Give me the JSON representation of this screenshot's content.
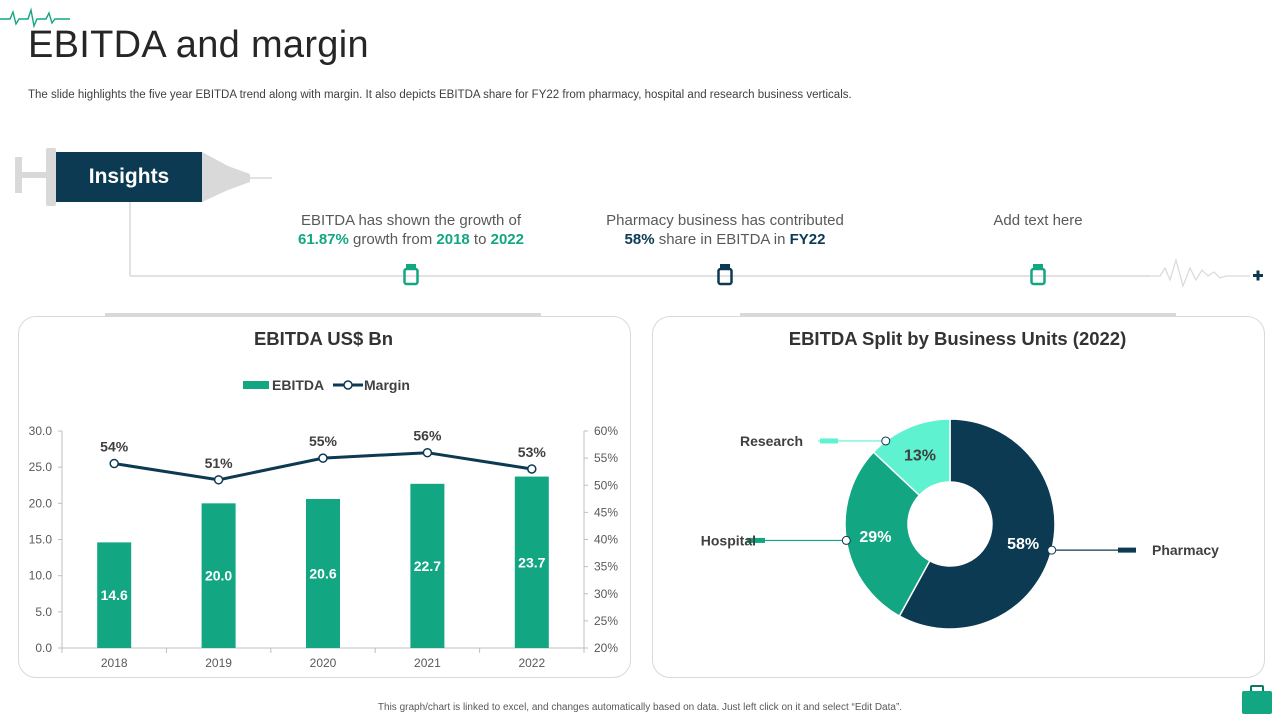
{
  "header": {
    "title": "EBITDA and margin",
    "subtitle": "The slide highlights the five year EBITDA trend along with margin. It also depicts EBITDA share for FY22 from pharmacy, hospital and research business verticals."
  },
  "insights": {
    "label": "Insights",
    "items": [
      {
        "line1": "EBITDA has shown the growth of",
        "pct": "61.87%",
        "mid": " growth from ",
        "from": "2018",
        "to_word": " to ",
        "to": "2022"
      },
      {
        "line1": "Pharmacy business has contributed",
        "pct": "58%",
        "mid": " share in EBITDA in ",
        "year": "FY22"
      },
      {
        "line1": "Add text here"
      }
    ]
  },
  "colors": {
    "teal": "#12a683",
    "navy": "#0c3a52",
    "mint": "#5ef2d0",
    "grey": "#d9d9d9"
  },
  "footer": {
    "note": "This graph/chart is linked to excel, and changes automatically based on data. Just left click on it and select “Edit Data”."
  },
  "chart_data": [
    {
      "type": "bar",
      "title": "EBITDA US$ Bn",
      "legend": [
        "EBITDA",
        "Margin"
      ],
      "legend_position": "top-center",
      "categories": [
        "2018",
        "2019",
        "2020",
        "2021",
        "2022"
      ],
      "series": [
        {
          "name": "EBITDA",
          "kind": "bar",
          "values": [
            14.6,
            20.0,
            20.6,
            22.7,
            23.7
          ],
          "labels": [
            "14.6",
            "20.0",
            "20.6",
            "22.7",
            "23.7"
          ]
        },
        {
          "name": "Margin",
          "kind": "line",
          "axis": "secondary",
          "values": [
            54,
            51,
            55,
            56,
            53
          ],
          "labels": [
            "54%",
            "51%",
            "55%",
            "56%",
            "53%"
          ]
        }
      ],
      "ylim": [
        0,
        30
      ],
      "yticks": [
        "0.0",
        "5.0",
        "10.0",
        "15.0",
        "20.0",
        "25.0",
        "30.0"
      ],
      "y2lim": [
        20,
        60
      ],
      "y2ticks": [
        "20%",
        "25%",
        "30%",
        "35%",
        "40%",
        "45%",
        "50%",
        "55%",
        "60%"
      ],
      "grid": false
    },
    {
      "type": "pie",
      "donut": true,
      "title": "EBITDA Split by Business Units (2022)",
      "categories": [
        "Pharmacy",
        "Hospital",
        "Research"
      ],
      "values": [
        58,
        29,
        13
      ],
      "labels": [
        "58%",
        "29%",
        "13%"
      ]
    }
  ]
}
